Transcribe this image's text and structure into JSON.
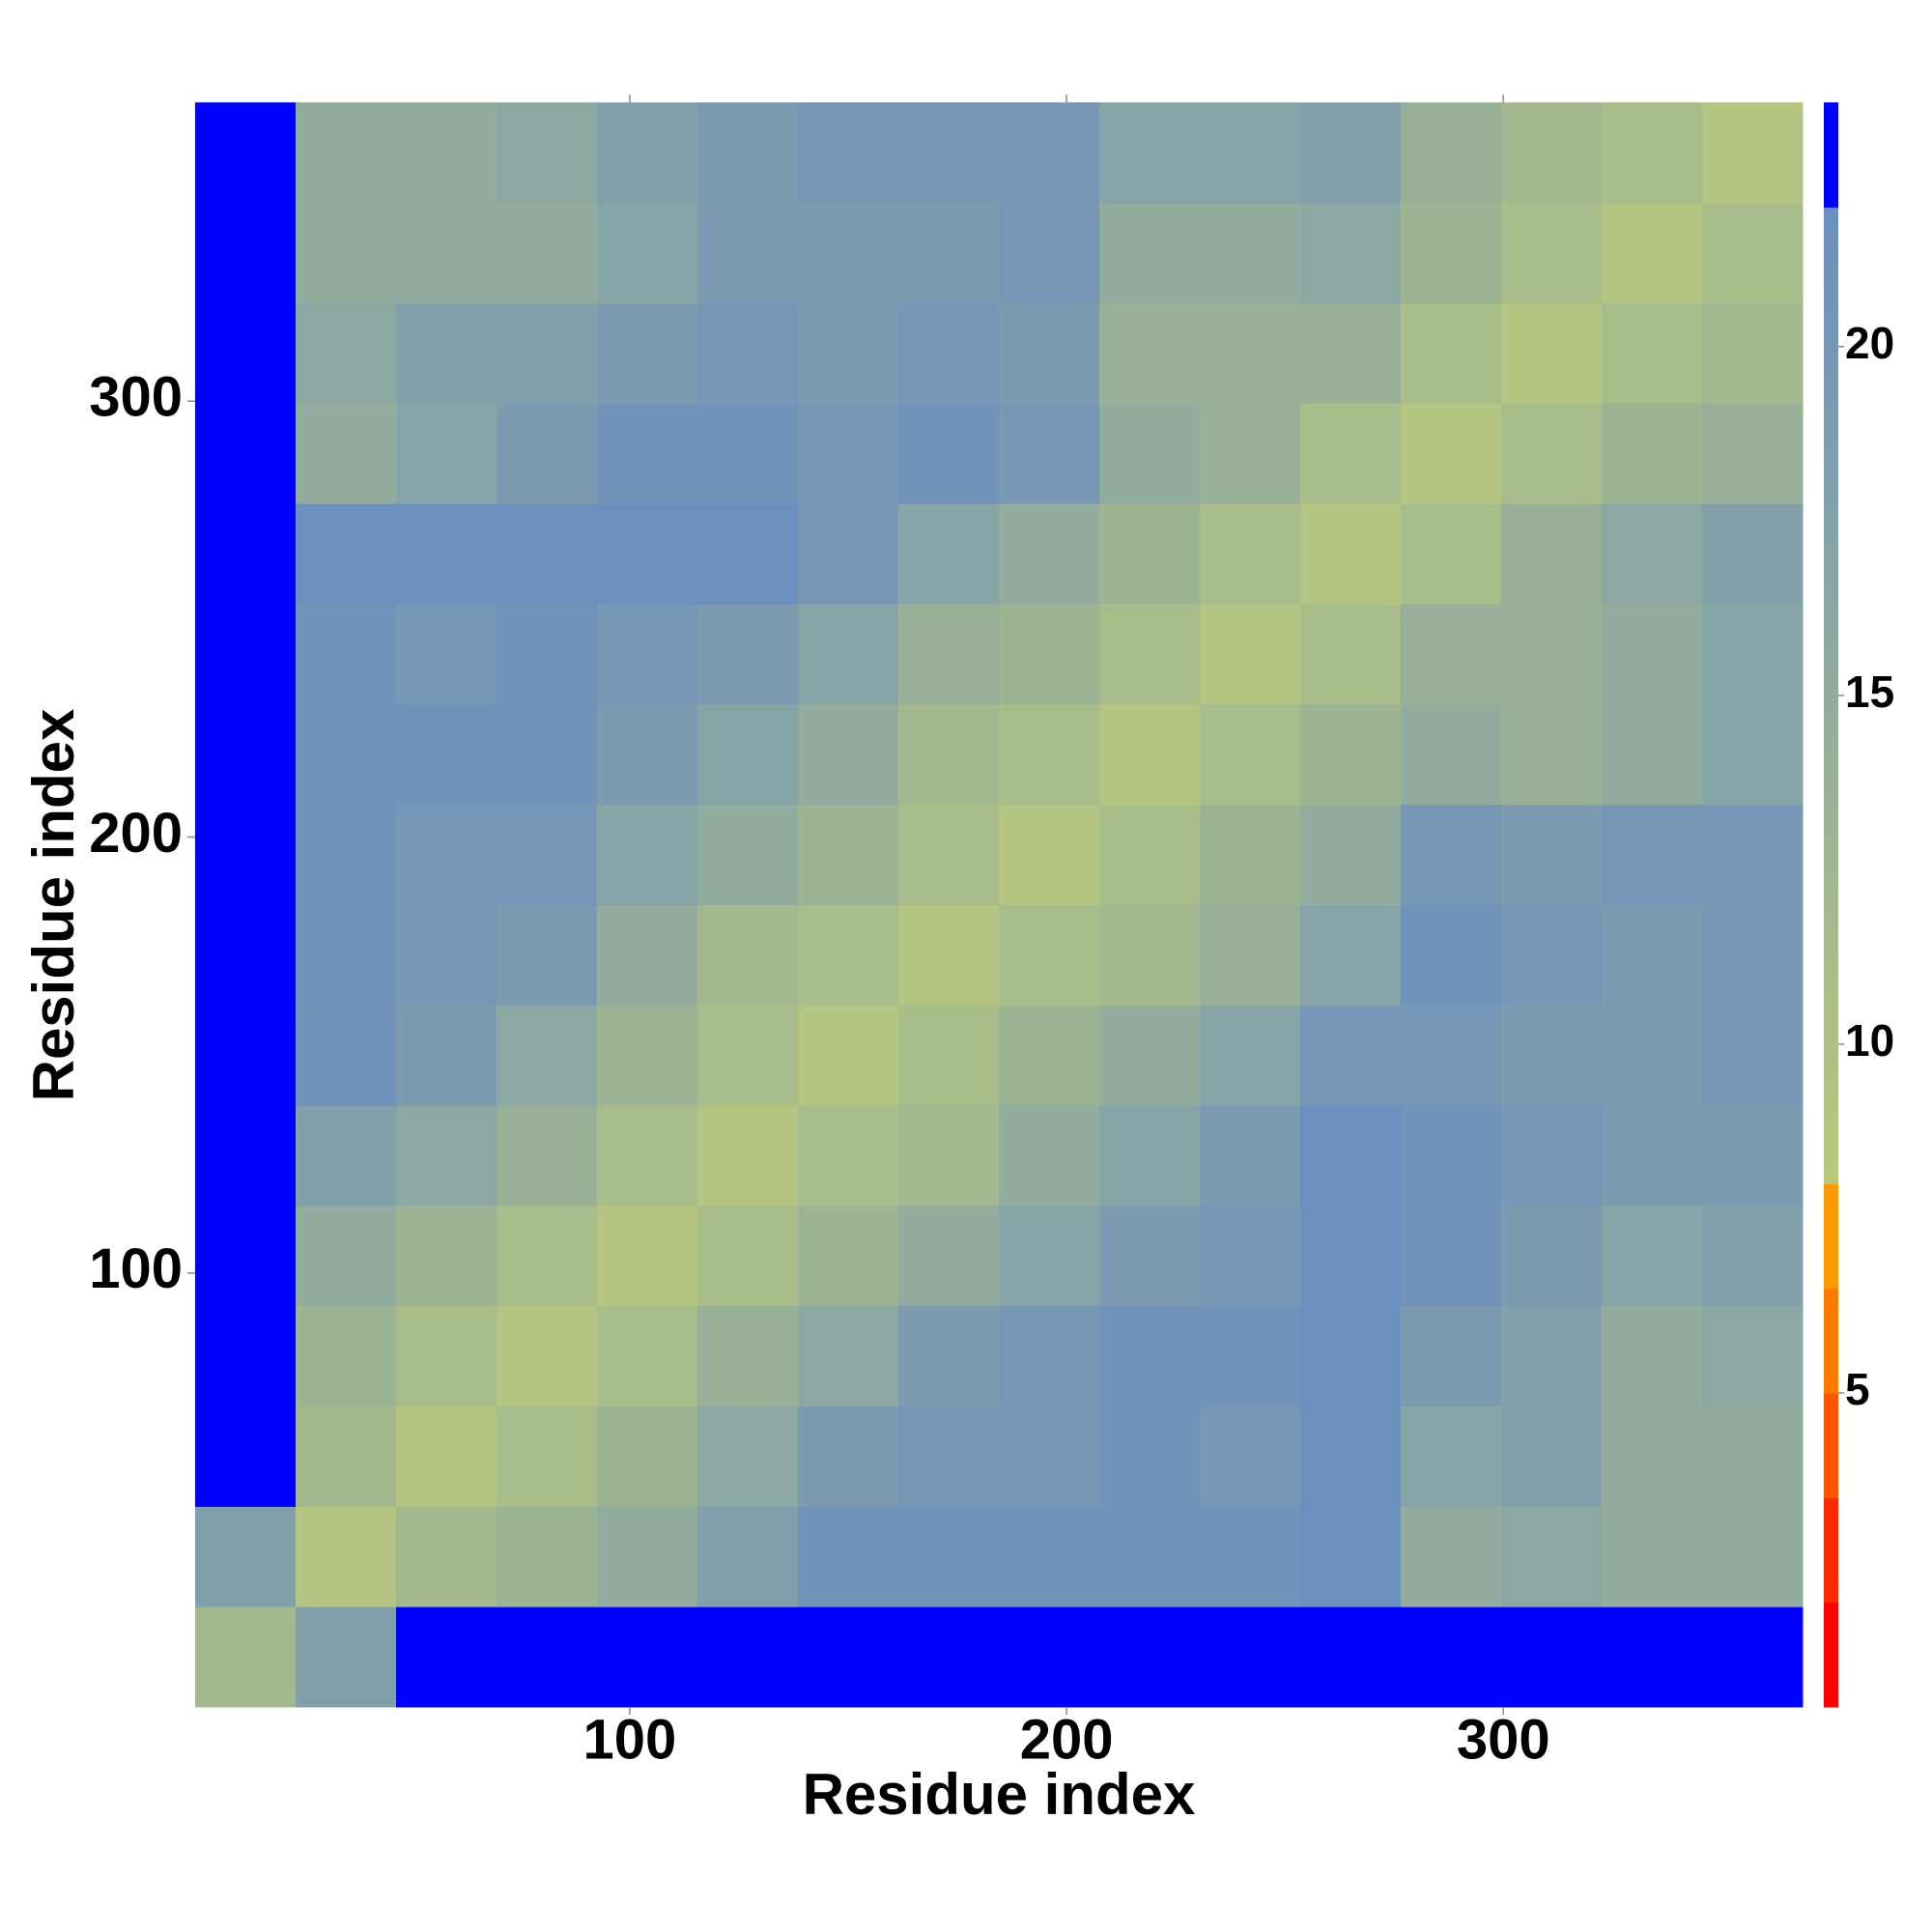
{
  "chart_data": {
    "type": "heatmap",
    "xlabel": "Residue index",
    "ylabel": "Residue index",
    "xlim": [
      0.5,
      368.5
    ],
    "ylim": [
      0.5,
      368.5
    ],
    "xticks": [
      100,
      200,
      300
    ],
    "yticks": [
      100,
      200,
      300
    ],
    "xbins": [
      0.5,
      23.5,
      46.5,
      69.5,
      92.5,
      115.5,
      138.5,
      161.5,
      184.5,
      207.5,
      230.5,
      253.5,
      276.5,
      299.5,
      322.5,
      345.5,
      368.5
    ],
    "ybins": [
      0.5,
      23.5,
      46.5,
      69.5,
      92.5,
      115.5,
      138.5,
      161.5,
      184.5,
      207.5,
      230.5,
      253.5,
      276.5,
      299.5,
      322.5,
      345.5,
      368.5
    ],
    "z": [
      [
        12,
        18,
        23,
        23,
        23,
        23,
        23,
        23,
        23,
        23,
        23,
        23,
        23,
        23,
        23,
        23
      ],
      [
        18,
        9,
        12,
        13,
        15,
        18,
        21,
        21,
        21,
        21,
        21,
        22,
        15,
        16,
        15,
        15
      ],
      [
        23,
        12,
        9,
        11,
        13,
        16,
        19,
        20,
        20,
        21,
        20,
        22,
        17,
        18,
        15,
        15
      ],
      [
        23,
        13,
        11,
        9,
        11,
        14,
        16,
        19,
        20,
        21,
        21,
        22,
        19,
        18,
        15,
        16
      ],
      [
        23,
        15,
        13,
        11,
        9,
        11,
        13,
        15,
        17,
        19,
        20,
        22,
        21,
        19,
        17,
        18
      ],
      [
        23,
        18,
        16,
        14,
        11,
        9,
        11,
        12,
        15,
        17,
        19,
        22,
        21,
        20,
        19,
        19
      ],
      [
        23,
        21,
        19,
        16,
        13,
        11,
        9,
        11,
        13,
        15,
        17,
        20,
        20,
        19,
        19,
        20
      ],
      [
        23,
        21,
        20,
        19,
        15,
        12,
        11,
        9,
        11,
        12,
        14,
        17,
        21,
        20,
        19,
        20
      ],
      [
        23,
        21,
        20,
        20,
        17,
        15,
        13,
        11,
        9,
        11,
        13,
        15,
        20,
        19,
        20,
        20
      ],
      [
        23,
        21,
        21,
        21,
        19,
        17,
        15,
        12,
        11,
        9,
        11,
        13,
        15,
        14,
        15,
        17
      ],
      [
        23,
        21,
        20,
        21,
        20,
        19,
        17,
        14,
        13,
        11,
        9,
        11,
        14,
        14,
        15,
        17
      ],
      [
        23,
        22,
        22,
        22,
        22,
        22,
        20,
        17,
        15,
        13,
        11,
        9,
        11,
        14,
        16,
        18
      ],
      [
        23,
        15,
        17,
        19,
        21,
        21,
        20,
        21,
        20,
        15,
        14,
        11,
        9,
        11,
        13,
        14
      ],
      [
        23,
        16,
        18,
        18,
        19,
        20,
        19,
        20,
        19,
        14,
        14,
        14,
        11,
        9,
        11,
        12
      ],
      [
        23,
        15,
        15,
        15,
        17,
        19,
        19,
        19,
        20,
        15,
        15,
        16,
        13,
        11,
        9,
        11
      ],
      [
        23,
        15,
        15,
        16,
        18,
        19,
        20,
        20,
        20,
        17,
        17,
        18,
        14,
        12,
        11,
        9
      ]
    ],
    "zlim": [
      0.5,
      23.5
    ],
    "zticks": [
      5,
      10,
      15,
      20
    ],
    "colorscale": [
      {
        "min": 0.5,
        "max": 2,
        "color": "#ff0000"
      },
      {
        "min": 2,
        "max": 3.5,
        "color": "#ff2a00"
      },
      {
        "min": 3.5,
        "max": 5,
        "color": "#ff5500"
      },
      {
        "min": 5,
        "max": 6.5,
        "color": "#ff7a00"
      },
      {
        "min": 6.5,
        "max": 8,
        "color": "#ff9900"
      },
      {
        "min": 8,
        "max": 22,
        "color": "#b9c97b",
        "color_end": "#6b8fbf"
      },
      {
        "min": 22,
        "max": 23.5,
        "color": "#0000ff"
      }
    ]
  }
}
